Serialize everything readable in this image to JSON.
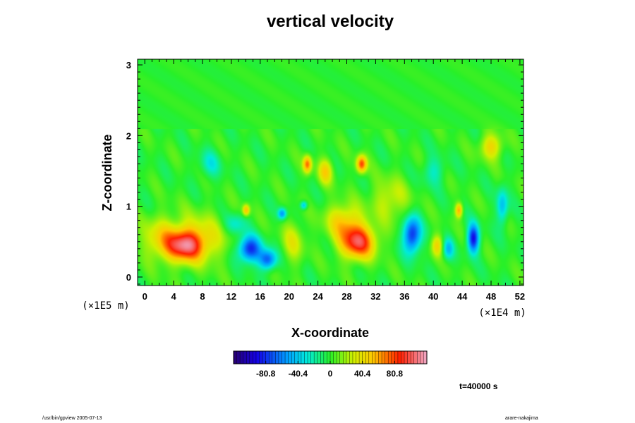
{
  "chart_data": {
    "type": "heatmap",
    "title": "vertical velocity",
    "xlabel": "X-coordinate",
    "ylabel": "Z-coordinate",
    "x_unit": "(×1E4 m)",
    "y_unit": "(×1E5 m)",
    "xlim": [
      -1,
      52.5
    ],
    "ylim": [
      -0.12,
      3.08
    ],
    "x_ticks": [
      "0",
      "4",
      "8",
      "12",
      "16",
      "20",
      "24",
      "28",
      "32",
      "36",
      "40",
      "44",
      "48",
      "52"
    ],
    "y_ticks": [
      "0",
      "1",
      "2",
      "3"
    ],
    "colorbar": {
      "range": [
        -121.2,
        121.2
      ],
      "tick_labels": [
        "-80.8",
        "-40.4",
        "0",
        "40.4",
        "80.8"
      ],
      "tick_values": [
        -80.8,
        -40.4,
        0,
        40.4,
        80.8
      ]
    },
    "time_label": "t=40000 s",
    "features": [
      {
        "x": 5.5,
        "z": 0.45,
        "value": 85,
        "sx": 2.6,
        "sz": 0.22
      },
      {
        "x": 7.5,
        "z": 0.55,
        "value": 35,
        "sx": 4.0,
        "sz": 0.35
      },
      {
        "x": 14.5,
        "z": 0.4,
        "value": -85,
        "sx": 1.6,
        "sz": 0.18
      },
      {
        "x": 17.0,
        "z": 0.25,
        "value": -70,
        "sx": 1.2,
        "sz": 0.14
      },
      {
        "x": 12.5,
        "z": 0.75,
        "value": -30,
        "sx": 1.5,
        "sz": 0.15
      },
      {
        "x": 19.0,
        "z": 0.9,
        "value": -55,
        "sx": 0.6,
        "sz": 0.08
      },
      {
        "x": 22.0,
        "z": 1.02,
        "value": -45,
        "sx": 0.5,
        "sz": 0.06
      },
      {
        "x": 29.5,
        "z": 0.5,
        "value": 95,
        "sx": 2.4,
        "sz": 0.24
      },
      {
        "x": 27.5,
        "z": 0.8,
        "value": 45,
        "sx": 2.5,
        "sz": 0.25
      },
      {
        "x": 30.0,
        "z": 1.6,
        "value": 80,
        "sx": 0.7,
        "sz": 0.12
      },
      {
        "x": 22.5,
        "z": 1.6,
        "value": 70,
        "sx": 0.6,
        "sz": 0.12
      },
      {
        "x": 25.0,
        "z": 1.5,
        "value": 45,
        "sx": 1.0,
        "sz": 0.18
      },
      {
        "x": 14.0,
        "z": 0.95,
        "value": 55,
        "sx": 0.5,
        "sz": 0.08
      },
      {
        "x": 37.0,
        "z": 0.6,
        "value": -85,
        "sx": 1.2,
        "sz": 0.25
      },
      {
        "x": 45.5,
        "z": 0.55,
        "value": -90,
        "sx": 0.8,
        "sz": 0.2
      },
      {
        "x": 42.0,
        "z": 0.4,
        "value": -40,
        "sx": 0.8,
        "sz": 0.15
      },
      {
        "x": 40.5,
        "z": 0.45,
        "value": 45,
        "sx": 0.8,
        "sz": 0.15
      },
      {
        "x": 43.5,
        "z": 0.95,
        "value": 60,
        "sx": 0.5,
        "sz": 0.1
      },
      {
        "x": 48.0,
        "z": 1.85,
        "value": 45,
        "sx": 1.5,
        "sz": 0.18
      },
      {
        "x": 2.0,
        "z": 0.55,
        "value": 35,
        "sx": 2.5,
        "sz": 0.3
      },
      {
        "x": 34.0,
        "z": 1.1,
        "value": 30,
        "sx": 2.5,
        "sz": 0.3
      },
      {
        "x": 9.0,
        "z": 1.6,
        "value": -25,
        "sx": 1.5,
        "sz": 0.2
      },
      {
        "x": 40.0,
        "z": 1.5,
        "value": -25,
        "sx": 1.5,
        "sz": 0.2
      },
      {
        "x": 49.5,
        "z": 1.0,
        "value": -45,
        "sx": 0.8,
        "sz": 0.25
      },
      {
        "x": 20.5,
        "z": 0.5,
        "value": 30,
        "sx": 1.5,
        "sz": 0.3
      }
    ]
  },
  "footer": {
    "left": "/usr/bin/gpview 2005-07-13",
    "right": "arare-nakajima"
  }
}
